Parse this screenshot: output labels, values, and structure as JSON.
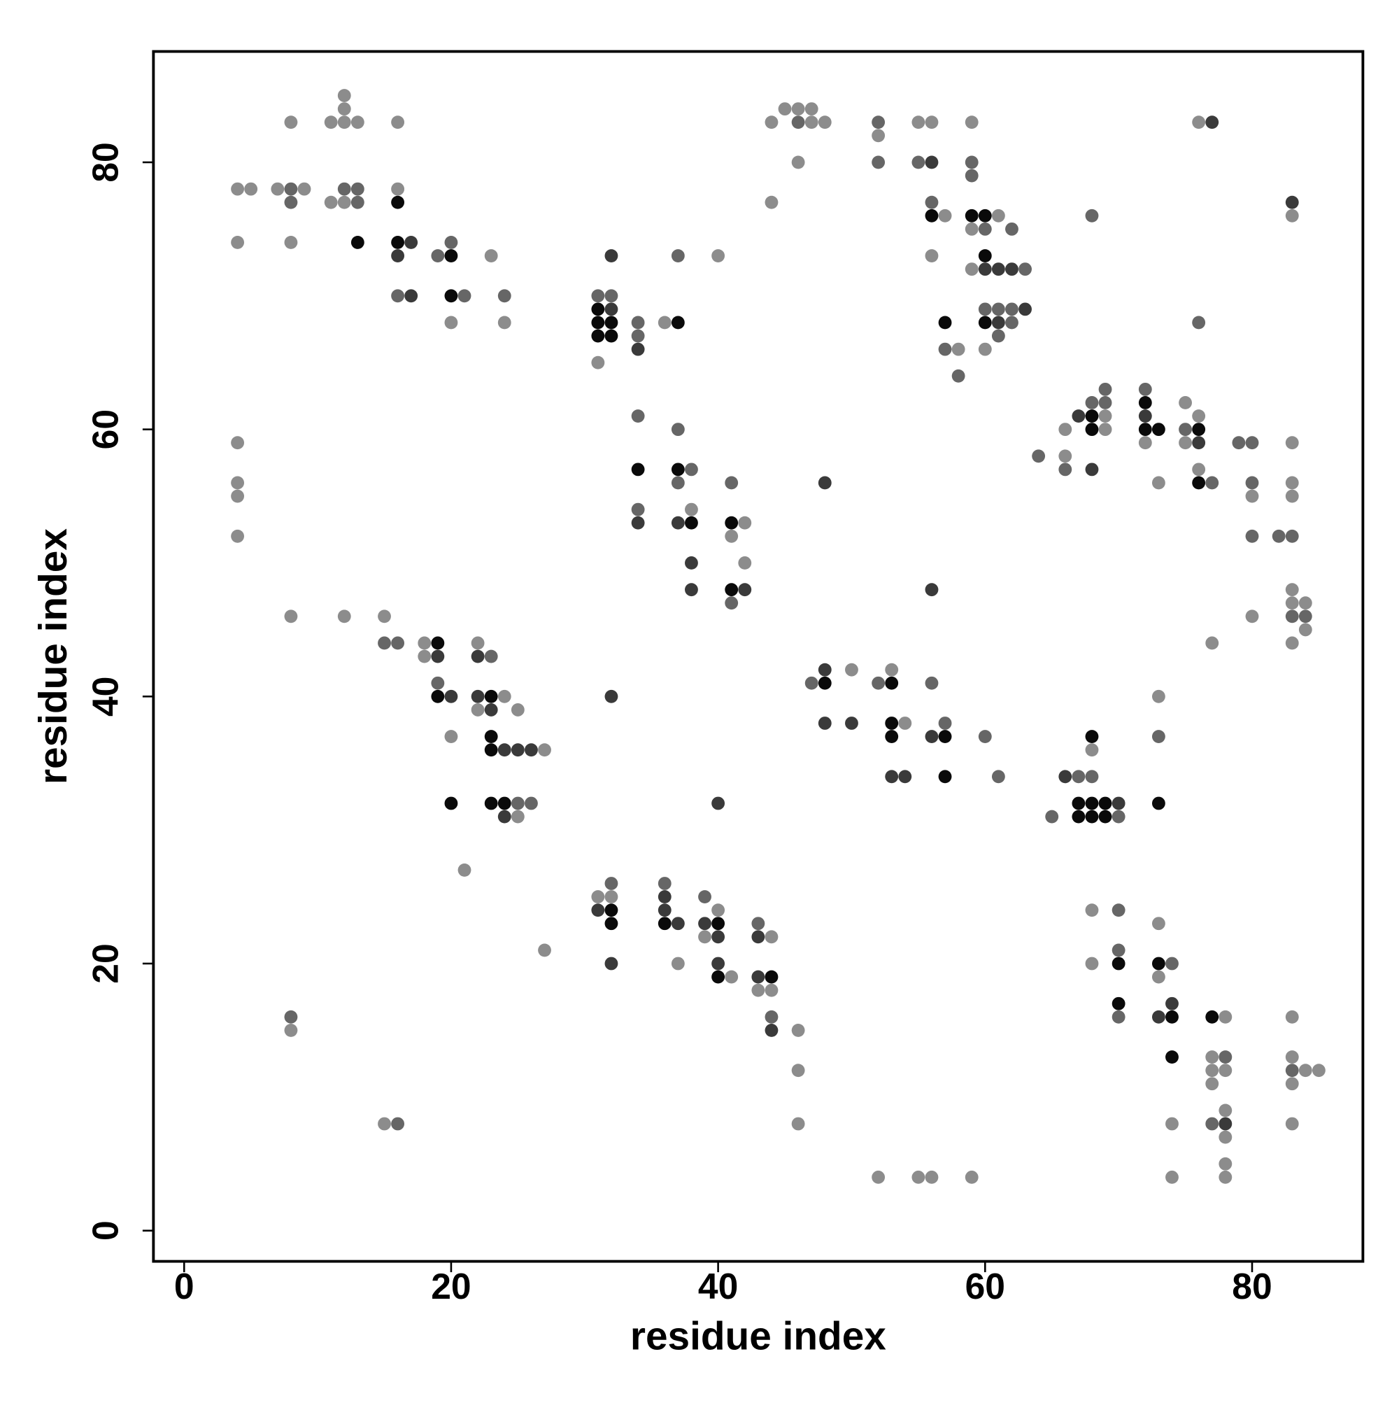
{
  "chart_data": {
    "type": "scatter",
    "x_label": "residue index",
    "y_label": "residue index",
    "xlim": [
      -2.3,
      88.3
    ],
    "ylim": [
      -2.3,
      88.3
    ],
    "xticks": [
      0,
      20,
      40,
      60,
      80
    ],
    "yticks": [
      0,
      20,
      40,
      60,
      80
    ],
    "series": [
      {
        "color": "#8c8c8c",
        "x": [
          12,
          12,
          45,
          46,
          47,
          8,
          11,
          12,
          13,
          16,
          44,
          47,
          48,
          55,
          56,
          59,
          76,
          52,
          46,
          4,
          5,
          7,
          9,
          16,
          11,
          12,
          44,
          57,
          61,
          83,
          59,
          4,
          8,
          23,
          40,
          56,
          59,
          20,
          24,
          36,
          58,
          60,
          31,
          75,
          69,
          76,
          66,
          69,
          4,
          72,
          75,
          83,
          66,
          76,
          4,
          73,
          83,
          4,
          80,
          83,
          38,
          42,
          4,
          41,
          42,
          83,
          83,
          84,
          8,
          12,
          15,
          80,
          84,
          18,
          22,
          77,
          83,
          18,
          50,
          53,
          24,
          73,
          22,
          25,
          54,
          20,
          27,
          68,
          25,
          21,
          31,
          32,
          40,
          68,
          73,
          39,
          44,
          27,
          37,
          68,
          41,
          73,
          43,
          44,
          78,
          83,
          8,
          46,
          77,
          83,
          46,
          77,
          78,
          84,
          85,
          77,
          83,
          78,
          15,
          46,
          74,
          83,
          78,
          78,
          52,
          55,
          56,
          59,
          74,
          78
        ],
        "values": [
          85,
          84,
          84,
          84,
          84,
          83,
          83,
          83,
          83,
          83,
          83,
          83,
          83,
          83,
          83,
          83,
          83,
          82,
          80,
          78,
          78,
          78,
          78,
          78,
          77,
          77,
          77,
          76,
          76,
          76,
          75,
          74,
          74,
          73,
          73,
          73,
          72,
          68,
          68,
          68,
          66,
          66,
          65,
          62,
          61,
          61,
          60,
          60,
          59,
          59,
          59,
          59,
          58,
          57,
          56,
          56,
          56,
          55,
          55,
          55,
          54,
          53,
          52,
          52,
          50,
          48,
          47,
          47,
          46,
          46,
          46,
          46,
          45,
          44,
          44,
          44,
          44,
          43,
          42,
          42,
          40,
          40,
          39,
          39,
          38,
          37,
          36,
          36,
          31,
          27,
          25,
          25,
          24,
          24,
          23,
          22,
          22,
          21,
          20,
          20,
          19,
          19,
          18,
          18,
          16,
          16,
          15,
          15,
          13,
          13,
          12,
          12,
          12,
          12,
          12,
          11,
          11,
          9,
          8,
          8,
          8,
          8,
          7,
          5,
          4,
          4,
          4,
          4,
          4,
          4
        ]
      },
      {
        "color": "#666666",
        "x": [
          46,
          52,
          52,
          55,
          59,
          59,
          8,
          12,
          13,
          8,
          13,
          56,
          68,
          60,
          62,
          20,
          19,
          37,
          63,
          16,
          21,
          24,
          31,
          32,
          60,
          61,
          62,
          34,
          62,
          76,
          34,
          61,
          57,
          58,
          69,
          72,
          68,
          69,
          34,
          37,
          75,
          79,
          80,
          64,
          38,
          66,
          37,
          41,
          77,
          80,
          34,
          80,
          82,
          83,
          41,
          83,
          84,
          15,
          16,
          23,
          19,
          47,
          52,
          56,
          57,
          60,
          73,
          61,
          67,
          68,
          25,
          26,
          65,
          70,
          32,
          36,
          39,
          70,
          43,
          70,
          74,
          8,
          44,
          70,
          78,
          83,
          16,
          77
        ],
        "values": [
          83,
          83,
          80,
          80,
          80,
          79,
          78,
          78,
          78,
          77,
          77,
          77,
          76,
          75,
          75,
          74,
          73,
          73,
          72,
          70,
          70,
          70,
          70,
          70,
          69,
          69,
          69,
          68,
          68,
          68,
          67,
          67,
          66,
          64,
          63,
          63,
          62,
          62,
          61,
          60,
          60,
          59,
          59,
          58,
          57,
          57,
          56,
          56,
          56,
          56,
          54,
          52,
          52,
          52,
          47,
          46,
          46,
          44,
          44,
          43,
          41,
          41,
          41,
          41,
          38,
          37,
          37,
          34,
          34,
          34,
          32,
          32,
          31,
          31,
          26,
          26,
          25,
          24,
          23,
          21,
          20,
          16,
          16,
          16,
          13,
          12,
          8,
          8
        ]
      },
      {
        "color": "#3a3a3a",
        "x": [
          77,
          56,
          83,
          17,
          16,
          32,
          60,
          61,
          62,
          17,
          32,
          63,
          61,
          34,
          67,
          72,
          76,
          68,
          48,
          34,
          37,
          38,
          38,
          42,
          56,
          19,
          22,
          48,
          20,
          22,
          32,
          23,
          48,
          50,
          56,
          24,
          25,
          26,
          53,
          54,
          66,
          40,
          70,
          24,
          36,
          31,
          36,
          37,
          39,
          40,
          43,
          32,
          40,
          43,
          74,
          73,
          44,
          78
        ],
        "values": [
          83,
          80,
          77,
          74,
          73,
          73,
          72,
          72,
          72,
          70,
          69,
          69,
          68,
          66,
          61,
          61,
          59,
          57,
          56,
          53,
          53,
          50,
          48,
          48,
          48,
          43,
          43,
          42,
          40,
          40,
          40,
          39,
          38,
          38,
          37,
          36,
          36,
          36,
          34,
          34,
          34,
          32,
          32,
          31,
          25,
          24,
          24,
          23,
          23,
          22,
          22,
          20,
          20,
          19,
          17,
          16,
          15,
          8
        ]
      },
      {
        "color": "#0a0a0a",
        "x": [
          16,
          56,
          59,
          60,
          13,
          16,
          20,
          60,
          20,
          31,
          31,
          32,
          37,
          57,
          60,
          31,
          32,
          72,
          68,
          68,
          72,
          73,
          76,
          34,
          37,
          76,
          38,
          41,
          41,
          19,
          48,
          53,
          19,
          23,
          53,
          23,
          53,
          57,
          68,
          23,
          57,
          20,
          23,
          24,
          67,
          68,
          69,
          73,
          67,
          68,
          69,
          32,
          32,
          36,
          40,
          70,
          73,
          40,
          44,
          70,
          74,
          77,
          74
        ],
        "values": [
          77,
          76,
          76,
          76,
          74,
          74,
          73,
          73,
          70,
          69,
          68,
          68,
          68,
          68,
          68,
          67,
          67,
          62,
          61,
          60,
          60,
          60,
          60,
          57,
          57,
          56,
          53,
          53,
          48,
          44,
          41,
          41,
          40,
          40,
          38,
          37,
          37,
          37,
          37,
          36,
          34,
          32,
          32,
          32,
          32,
          32,
          32,
          32,
          31,
          31,
          31,
          24,
          23,
          23,
          23,
          20,
          20,
          19,
          19,
          17,
          16,
          16,
          13
        ]
      }
    ]
  }
}
